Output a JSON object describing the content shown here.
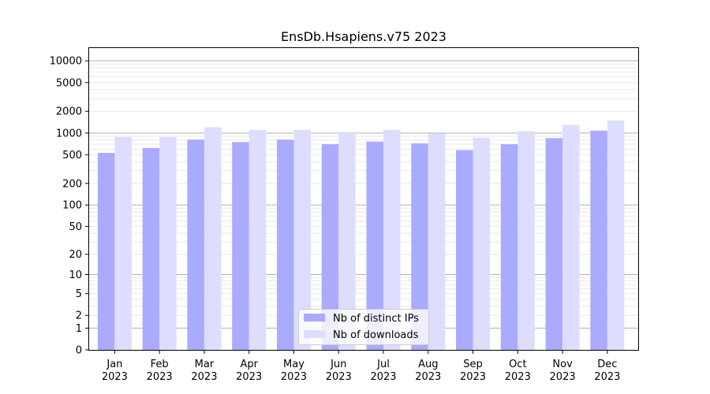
{
  "chart_data": {
    "type": "bar",
    "title": "EnsDb.Hsapiens.v75 2023",
    "xlabel": "",
    "ylabel": "",
    "y_scale": "symlog",
    "y_ticks": [
      0,
      1,
      2,
      5,
      10,
      20,
      50,
      100,
      200,
      500,
      1000,
      2000,
      5000,
      10000
    ],
    "ylim": [
      0,
      15000
    ],
    "grid": true,
    "legend_position": "bottom-center",
    "categories": [
      {
        "month": "Jan",
        "year": "2023"
      },
      {
        "month": "Feb",
        "year": "2023"
      },
      {
        "month": "Mar",
        "year": "2023"
      },
      {
        "month": "Apr",
        "year": "2023"
      },
      {
        "month": "May",
        "year": "2023"
      },
      {
        "month": "Jun",
        "year": "2023"
      },
      {
        "month": "Jul",
        "year": "2023"
      },
      {
        "month": "Aug",
        "year": "2023"
      },
      {
        "month": "Sep",
        "year": "2023"
      },
      {
        "month": "Oct",
        "year": "2023"
      },
      {
        "month": "Nov",
        "year": "2023"
      },
      {
        "month": "Dec",
        "year": "2023"
      }
    ],
    "series": [
      {
        "name": "Nb of distinct IPs",
        "color": "#aaaaff",
        "values": [
          530,
          620,
          810,
          750,
          810,
          700,
          760,
          720,
          580,
          700,
          850,
          1080
        ]
      },
      {
        "name": "Nb of downloads",
        "color": "#ddddff",
        "values": [
          880,
          880,
          1200,
          1100,
          1100,
          1000,
          1100,
          980,
          860,
          1060,
          1300,
          1500
        ]
      }
    ]
  }
}
